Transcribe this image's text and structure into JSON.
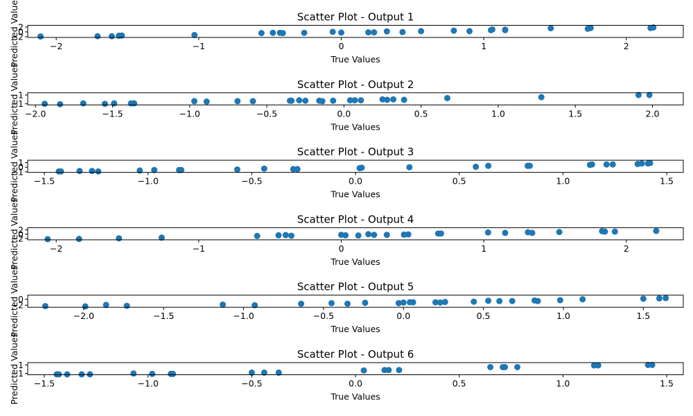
{
  "chart_data": [
    {
      "type": "scatter",
      "title": "Scatter Plot - Output 1",
      "xlabel": "True Values",
      "ylabel": "Predicted Values",
      "xlim": [
        -2.2,
        2.4
      ],
      "ylim": [
        -2.3,
        2.7
      ],
      "xticks": [
        -2,
        -1,
        0,
        1,
        2
      ],
      "yticks": [
        -2,
        0,
        2
      ],
      "grid": false,
      "series": [
        {
          "x": [
            -2.11,
            -1.71,
            -1.61,
            -1.56,
            -1.54,
            -1.03,
            -0.56,
            -0.48,
            -0.43,
            -0.41,
            -0.26,
            -0.06,
            0.0,
            0.19,
            0.23,
            0.32,
            0.43,
            0.56,
            0.79,
            0.9,
            1.05,
            1.06,
            1.15,
            1.15,
            1.47,
            1.73,
            1.75,
            2.17,
            2.19
          ],
          "y": [
            -1.9,
            -1.8,
            -1.8,
            -1.6,
            -1.5,
            -1.3,
            -0.5,
            -0.4,
            -0.4,
            -0.5,
            -0.4,
            0.0,
            -0.3,
            -0.2,
            -0.2,
            0.2,
            -0.1,
            0.3,
            0.5,
            0.3,
            0.7,
            1.0,
            0.9,
            0.7,
            1.5,
            1.3,
            1.6,
            1.6,
            1.8
          ]
        }
      ]
    },
    {
      "type": "scatter",
      "title": "Scatter Plot - Output 2",
      "xlabel": "True Values",
      "ylabel": "Predicted Values",
      "xlim": [
        -2.05,
        2.2
      ],
      "ylim": [
        -1.25,
        1.5
      ],
      "xticks": [
        -2.0,
        -1.5,
        -1.0,
        -0.5,
        0.0,
        0.5,
        1.0,
        1.5,
        2.0
      ],
      "yticks": [
        -1,
        1
      ],
      "grid": false,
      "series": [
        {
          "x": [
            -1.94,
            -1.84,
            -1.69,
            -1.55,
            -1.49,
            -1.38,
            -1.36,
            -0.97,
            -0.89,
            -0.69,
            -0.59,
            -0.35,
            -0.34,
            -0.29,
            -0.25,
            -0.16,
            -0.14,
            -0.07,
            0.04,
            0.07,
            0.11,
            0.25,
            0.28,
            0.32,
            0.39,
            0.67,
            1.28,
            1.91,
            1.98
          ],
          "y": [
            -1.0,
            -1.1,
            -0.9,
            -1.0,
            -0.9,
            -0.9,
            -0.9,
            -0.4,
            -0.5,
            -0.4,
            -0.4,
            -0.3,
            -0.3,
            -0.2,
            -0.3,
            -0.3,
            -0.4,
            -0.3,
            -0.2,
            -0.2,
            -0.2,
            0.0,
            -0.1,
            0.0,
            -0.1,
            0.3,
            0.5,
            1.0,
            1.0
          ]
        }
      ]
    },
    {
      "type": "scatter",
      "title": "Scatter Plot - Output 3",
      "xlabel": "True Values",
      "ylabel": "Predicted Values",
      "xlim": [
        -1.58,
        1.58
      ],
      "ylim": [
        -1.1,
        1.5
      ],
      "xticks": [
        -1.5,
        -1.0,
        -0.5,
        0.0,
        0.5,
        1.0,
        1.5
      ],
      "yticks": [
        -1,
        0,
        1
      ],
      "grid": false,
      "series": [
        {
          "x": [
            -1.43,
            -1.42,
            -1.33,
            -1.27,
            -1.24,
            -1.04,
            -0.97,
            -0.85,
            -0.84,
            -0.57,
            -0.44,
            -0.3,
            -0.28,
            0.02,
            0.03,
            0.26,
            0.58,
            0.64,
            0.83,
            0.84,
            1.13,
            1.14,
            1.21,
            1.24,
            1.36,
            1.38,
            1.41,
            1.42
          ],
          "y": [
            -0.9,
            -0.9,
            -0.8,
            -0.8,
            -0.9,
            -0.7,
            -0.6,
            -0.6,
            -0.6,
            -0.5,
            -0.3,
            -0.4,
            -0.4,
            -0.2,
            -0.1,
            0.0,
            0.1,
            0.3,
            0.3,
            0.3,
            0.5,
            0.6,
            0.6,
            0.6,
            0.7,
            0.8,
            0.8,
            0.9
          ]
        }
      ]
    },
    {
      "type": "scatter",
      "title": "Scatter Plot - Output 4",
      "xlabel": "True Values",
      "ylabel": "Predicted Values",
      "xlim": [
        -2.2,
        2.4
      ],
      "ylim": [
        -2.6,
        3.0
      ],
      "xticks": [
        -2,
        -1,
        0,
        1,
        2
      ],
      "yticks": [
        -2,
        0,
        2
      ],
      "grid": false,
      "series": [
        {
          "x": [
            -2.06,
            -1.84,
            -1.56,
            -1.26,
            -0.59,
            -0.44,
            -0.39,
            -0.35,
            0.0,
            0.03,
            0.12,
            0.19,
            0.23,
            0.32,
            0.44,
            0.47,
            0.68,
            0.7,
            1.03,
            1.15,
            1.31,
            1.34,
            1.53,
            1.83,
            1.85,
            1.92,
            2.21
          ],
          "y": [
            -2.3,
            -2.2,
            -1.9,
            -1.6,
            -0.8,
            -0.5,
            -0.4,
            -0.7,
            -0.3,
            -0.5,
            -0.6,
            0.0,
            -0.3,
            -0.3,
            -0.2,
            -0.1,
            0.3,
            0.3,
            0.8,
            0.6,
            0.9,
            0.6,
            1.0,
            1.4,
            1.2,
            1.2,
            1.5
          ]
        }
      ]
    },
    {
      "type": "scatter",
      "title": "Scatter Plot - Output 5",
      "xlabel": "True Values",
      "ylabel": "Predicted Values",
      "xlim": [
        -2.35,
        1.75
      ],
      "ylim": [
        -2.7,
        1.4
      ],
      "xticks": [
        -2.0,
        -1.5,
        -1.0,
        -0.5,
        0.0,
        0.5,
        1.0,
        1.5
      ],
      "yticks": [
        -2,
        0
      ],
      "grid": false,
      "series": [
        {
          "x": [
            -2.24,
            -1.99,
            -1.86,
            -1.73,
            -1.13,
            -0.93,
            -0.64,
            -0.45,
            -0.35,
            -0.24,
            -0.03,
            0.0,
            0.04,
            0.06,
            0.2,
            0.23,
            0.26,
            0.44,
            0.53,
            0.6,
            0.68,
            0.82,
            0.84,
            0.98,
            1.12,
            1.5,
            1.6,
            1.64
          ],
          "y": [
            -2.3,
            -2.4,
            -1.9,
            -2.2,
            -1.8,
            -2.0,
            -1.5,
            -1.3,
            -1.5,
            -1.2,
            -1.3,
            -1.1,
            -1.0,
            -1.0,
            -1.0,
            -1.1,
            -0.9,
            -0.8,
            -0.5,
            -0.6,
            -0.6,
            -0.4,
            -0.6,
            -0.3,
            0.0,
            0.2,
            0.3,
            0.4
          ]
        }
      ]
    },
    {
      "type": "scatter",
      "title": "Scatter Plot - Output 6",
      "xlabel": "True Values",
      "ylabel": "Predicted Values",
      "xlim": [
        -1.58,
        1.58
      ],
      "ylim": [
        -1.3,
        1.55
      ],
      "xticks": [
        -1.5,
        -1.0,
        -0.5,
        0.0,
        0.5,
        1.0,
        1.5
      ],
      "yticks": [
        -1,
        1
      ],
      "grid": false,
      "series": [
        {
          "x": [
            -1.44,
            -1.43,
            -1.39,
            -1.32,
            -1.28,
            -1.07,
            -0.98,
            -0.89,
            -0.88,
            -0.5,
            -0.44,
            -0.37,
            0.04,
            0.14,
            0.16,
            0.21,
            0.65,
            0.71,
            0.72,
            0.78,
            1.15,
            1.17,
            1.41,
            1.43
          ],
          "y": [
            -1.2,
            -1.2,
            -1.2,
            -1.2,
            -1.2,
            -1.0,
            -1.1,
            -1.1,
            -1.1,
            -0.8,
            -0.8,
            -0.8,
            -0.3,
            -0.2,
            -0.2,
            -0.2,
            0.5,
            0.5,
            0.5,
            0.5,
            0.9,
            0.9,
            1.0,
            1.0
          ]
        }
      ]
    }
  ]
}
